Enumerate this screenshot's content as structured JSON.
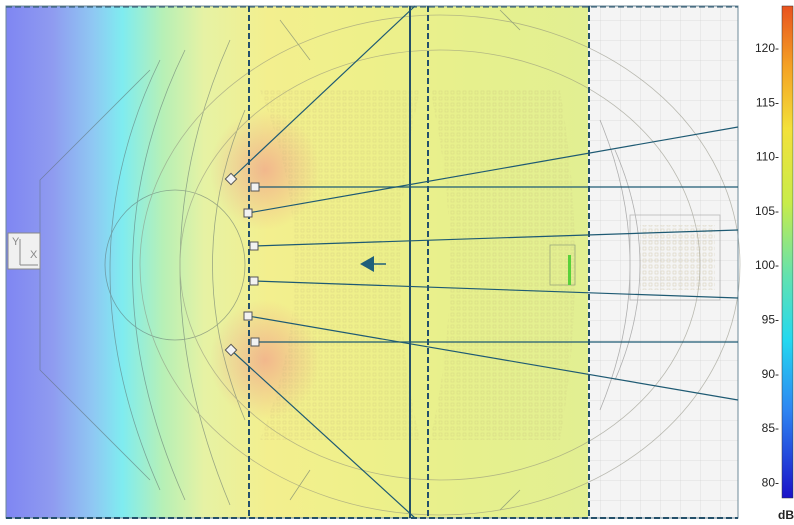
{
  "colorbar": {
    "ticks": [
      {
        "label": "120-",
        "value": 120
      },
      {
        "label": "115-",
        "value": 115
      },
      {
        "label": "110-",
        "value": 110
      },
      {
        "label": "105-",
        "value": 105
      },
      {
        "label": "100-",
        "value": 100
      },
      {
        "label": "95-",
        "value": 95
      },
      {
        "label": "90-",
        "value": 90
      },
      {
        "label": "85-",
        "value": 85
      },
      {
        "label": "80-",
        "value": 80
      }
    ],
    "unit": "dB",
    "range": [
      78,
      123
    ]
  },
  "axis_widget": {
    "y_label": "Y",
    "x_label": "X"
  },
  "colors": {
    "boundary": "#24506a",
    "ray": "#1e5a73",
    "arrow": "#1f5f7a"
  },
  "icons": {
    "direction": "arrow-left-icon",
    "speaker": "speaker-marker-icon"
  }
}
